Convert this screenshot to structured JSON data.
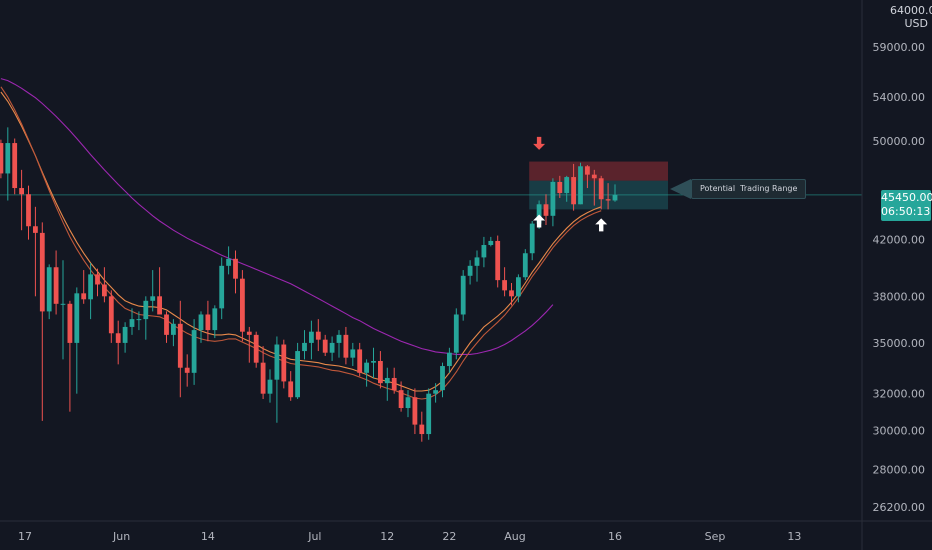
{
  "currency": "USD",
  "top_price_label": "64000.00",
  "last_price": "45450.00",
  "countdown": "06:50:13",
  "annotation_text": "Potential  Trading Range",
  "colors": {
    "background": "#131722",
    "up": "#26a69a",
    "down": "#ef5350",
    "ema_fast": "#e8894a",
    "ema_slow": "#c0583a",
    "ma_long": "#9c27b0",
    "last_price_line": "#26a69a",
    "resistance_zone": "#b2333a",
    "support_zone": "#1e6b70",
    "arrow_down": "#ef5350",
    "arrow_up": "#ffffff"
  },
  "chart_data": {
    "type": "candlestick",
    "title": "",
    "xlabel": "",
    "ylabel": "",
    "y_scale": "log",
    "ylim": [
      25200,
      66000
    ],
    "price_ticks": [
      "59000.00",
      "54000.00",
      "50000.00",
      "45450.00",
      "42000.00",
      "38000.00",
      "35000.00",
      "32000.00",
      "30000.00",
      "28000.00",
      "26200.00"
    ],
    "date_ticks": [
      "17",
      "Jun",
      "14",
      "Jul",
      "12",
      "22",
      "Aug",
      "16",
      "Sep",
      "13"
    ],
    "candles": [
      [
        49800,
        50100,
        46800,
        47200
      ],
      [
        47200,
        51200,
        45000,
        49800
      ],
      [
        49800,
        50200,
        45500,
        46000
      ],
      [
        46000,
        47500,
        42700,
        45500
      ],
      [
        45500,
        46200,
        42000,
        43000
      ],
      [
        43000,
        44500,
        38000,
        42500
      ],
      [
        42500,
        43300,
        30500,
        37000
      ],
      [
        37000,
        40200,
        36500,
        40000
      ],
      [
        40000,
        41200,
        36800,
        37500
      ],
      [
        37500,
        40500,
        34000,
        37500
      ],
      [
        37500,
        37700,
        31000,
        35000
      ],
      [
        35000,
        38600,
        32000,
        38200
      ],
      [
        38200,
        39800,
        37500,
        37800
      ],
      [
        37800,
        40300,
        36500,
        39500
      ],
      [
        39500,
        39900,
        38000,
        38800
      ],
      [
        38800,
        40000,
        37600,
        38000
      ],
      [
        38000,
        38400,
        35000,
        35600
      ],
      [
        35600,
        36400,
        33700,
        35000
      ],
      [
        35000,
        36300,
        34400,
        36000
      ],
      [
        36000,
        37200,
        35500,
        36500
      ],
      [
        36500,
        37000,
        35800,
        36500
      ],
      [
        36500,
        38000,
        35200,
        37700
      ],
      [
        37700,
        39800,
        37000,
        38000
      ],
      [
        38000,
        40000,
        36800,
        36800
      ],
      [
        36800,
        37000,
        35000,
        35500
      ],
      [
        35500,
        36500,
        34800,
        36200
      ],
      [
        36200,
        37700,
        31800,
        33500
      ],
      [
        33500,
        34300,
        32400,
        33200
      ],
      [
        33200,
        36500,
        32500,
        35800
      ],
      [
        35800,
        37000,
        35000,
        36800
      ],
      [
        36800,
        37700,
        35100,
        35800
      ],
      [
        35800,
        37400,
        35300,
        37200
      ],
      [
        37200,
        40700,
        36500,
        40100
      ],
      [
        40100,
        41500,
        39500,
        40600
      ],
      [
        40600,
        41200,
        38200,
        39200
      ],
      [
        39200,
        39800,
        35100,
        35700
      ],
      [
        35700,
        36000,
        33800,
        35500
      ],
      [
        35500,
        35700,
        33500,
        33800
      ],
      [
        33800,
        34800,
        31700,
        32000
      ],
      [
        32000,
        33400,
        31500,
        32800
      ],
      [
        32800,
        35400,
        30400,
        34900
      ],
      [
        34900,
        35200,
        32300,
        32700
      ],
      [
        32700,
        33300,
        31600,
        31800
      ],
      [
        31800,
        35000,
        31700,
        34500
      ],
      [
        34500,
        35800,
        34000,
        35000
      ],
      [
        35000,
        36400,
        34000,
        35700
      ],
      [
        35700,
        36500,
        34500,
        35200
      ],
      [
        35200,
        35500,
        34200,
        34400
      ],
      [
        34400,
        35400,
        33900,
        35000
      ],
      [
        35000,
        35800,
        34100,
        35500
      ],
      [
        35500,
        36000,
        33700,
        34100
      ],
      [
        34100,
        35000,
        33600,
        34600
      ],
      [
        34600,
        35000,
        33000,
        33200
      ],
      [
        33200,
        34000,
        32400,
        33800
      ],
      [
        33800,
        34700,
        32900,
        33900
      ],
      [
        33900,
        34500,
        32300,
        32600
      ],
      [
        32600,
        33500,
        31600,
        32900
      ],
      [
        32900,
        33500,
        32000,
        32200
      ],
      [
        32200,
        32700,
        31000,
        31200
      ],
      [
        31200,
        32200,
        30700,
        31800
      ],
      [
        31800,
        32300,
        29800,
        30300
      ],
      [
        30300,
        31000,
        29400,
        29800
      ],
      [
        29800,
        32300,
        29500,
        32000
      ],
      [
        32000,
        32600,
        31500,
        32200
      ],
      [
        32200,
        33800,
        31800,
        33600
      ],
      [
        33600,
        34700,
        33200,
        34400
      ],
      [
        34400,
        37200,
        34000,
        36800
      ],
      [
        36800,
        39800,
        36400,
        39400
      ],
      [
        39400,
        40500,
        38800,
        40100
      ],
      [
        40100,
        41200,
        39000,
        40700
      ],
      [
        40700,
        42200,
        40000,
        41600
      ],
      [
        41600,
        42200,
        41500,
        41900
      ],
      [
        41900,
        42300,
        38600,
        39100
      ],
      [
        39100,
        40000,
        38000,
        38400
      ],
      [
        38400,
        38900,
        37400,
        38000
      ],
      [
        38000,
        39500,
        37600,
        39300
      ],
      [
        39300,
        41300,
        39100,
        41000
      ],
      [
        41000,
        43400,
        40500,
        43200
      ],
      [
        43200,
        45000,
        42800,
        44700
      ],
      [
        44700,
        45500,
        43100,
        43800
      ],
      [
        43800,
        46800,
        43000,
        46500
      ],
      [
        46500,
        47000,
        45200,
        45600
      ],
      [
        45600,
        47000,
        44900,
        46900
      ],
      [
        46900,
        48000,
        44200,
        44700
      ],
      [
        44700,
        48100,
        44700,
        47800
      ],
      [
        47800,
        47900,
        46000,
        47100
      ],
      [
        47100,
        47500,
        44600,
        46800
      ],
      [
        46800,
        47000,
        44300,
        45100
      ],
      [
        45100,
        46400,
        44300,
        45000
      ],
      [
        45000,
        46300,
        44900,
        45450
      ]
    ],
    "series": [
      {
        "name": "",
        "values": [
          55800,
          55600,
          55250,
          54850,
          54400,
          53950,
          53400,
          52800,
          52200,
          51550,
          50900,
          50200,
          49500,
          48800,
          48150,
          47500,
          46900,
          46300,
          45750,
          45200,
          44700,
          44250,
          43800,
          43400,
          43050,
          42700,
          42400,
          42100,
          41850,
          41600,
          41350,
          41100,
          40850,
          40650,
          40450,
          40250,
          40050,
          39850,
          39650,
          39450,
          39250,
          39050,
          38850,
          38600,
          38350,
          38100,
          37850,
          37600,
          37350,
          37100,
          36850,
          36600,
          36400,
          36150,
          35900,
          35700,
          35500,
          35300,
          35100,
          34950,
          34800,
          34650,
          34550,
          34450,
          34400,
          34350,
          34300,
          34300,
          34300,
          34350,
          34450,
          34550,
          34700,
          34900,
          35150,
          35450,
          35750,
          36100,
          36500,
          36950,
          37450
        ]
      },
      {
        "name": "",
        "values": [
          54500,
          53600,
          52500,
          51300,
          50000,
          48700,
          47300,
          46000,
          44800,
          43700,
          42700,
          41800,
          41000,
          40300,
          39700,
          39100,
          38600,
          38100,
          37700,
          37500,
          37350,
          37300,
          37300,
          37250,
          37100,
          36800,
          36500,
          36200,
          35950,
          35750,
          35600,
          35500,
          35500,
          35550,
          35500,
          35300,
          35100,
          34900,
          34650,
          34450,
          34300,
          34150,
          34000,
          33950,
          33900,
          33850,
          33800,
          33700,
          33650,
          33600,
          33500,
          33400,
          33250,
          33100,
          32900,
          32800,
          32700,
          32600,
          32450,
          32300,
          32150,
          32150,
          32200,
          32400,
          32700,
          33200,
          33800,
          34400,
          35000,
          35500,
          36000,
          36350,
          36700,
          37100,
          37600,
          38200,
          38900,
          39650,
          40300,
          41000,
          41700,
          42300,
          42850,
          43350,
          43750,
          44050,
          44300,
          44500
        ]
      },
      {
        "name": "",
        "values": [
          55000,
          54000,
          52800,
          51500,
          50100,
          48700,
          47200,
          45800,
          44500,
          43300,
          42200,
          41300,
          40500,
          39800,
          39200,
          38600,
          38100,
          37600,
          37200,
          37000,
          36800,
          36750,
          36700,
          36650,
          36450,
          36100,
          35850,
          35600,
          35400,
          35250,
          35150,
          35100,
          35150,
          35250,
          35250,
          35050,
          34850,
          34650,
          34400,
          34200,
          34050,
          33900,
          33750,
          33700,
          33650,
          33600,
          33550,
          33450,
          33350,
          33300,
          33200,
          33100,
          32950,
          32800,
          32600,
          32450,
          32300,
          32200,
          32050,
          31900,
          31750,
          31700,
          31750,
          31950,
          32250,
          32700,
          33250,
          33900,
          34500,
          35000,
          35500,
          35900,
          36300,
          36750,
          37300,
          37900,
          38600,
          39350,
          40000,
          40700,
          41400,
          42000,
          42550,
          43050,
          43450,
          43750,
          44000,
          44200
        ]
      }
    ],
    "resistance_zone": [
      46600,
      48200
    ],
    "support_zone": [
      44300,
      46600
    ],
    "last_price": 45450
  }
}
